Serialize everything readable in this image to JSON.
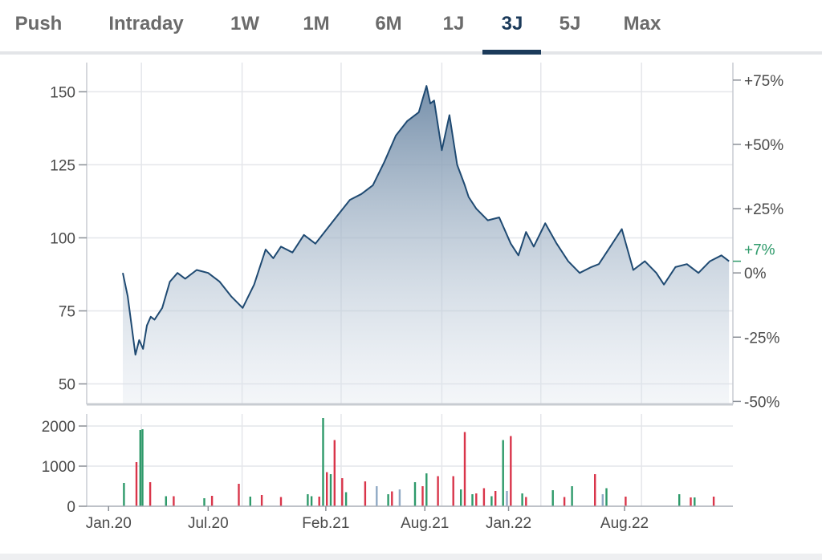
{
  "tabs": [
    {
      "label": "Push",
      "active": false
    },
    {
      "label": "Intraday",
      "active": false
    },
    {
      "label": "1W",
      "active": false
    },
    {
      "label": "1M",
      "active": false
    },
    {
      "label": "6M",
      "active": false
    },
    {
      "label": "1J",
      "active": false
    },
    {
      "label": "3J",
      "active": true
    },
    {
      "label": "5J",
      "active": false
    },
    {
      "label": "Max",
      "active": false
    }
  ],
  "colors": {
    "accent": "#1b3a5a",
    "line": "#1f4a72",
    "positive": "#2e9a6a",
    "negative": "#d9354a",
    "neutral_bar": "#8fa9c4"
  },
  "chart_data": [
    {
      "type": "area",
      "x_tick_labels": [
        "Jan.20",
        "Jul.20",
        "Feb.21",
        "Aug.21",
        "Jan.22",
        "Aug.22"
      ],
      "y_left_ticks": [
        150,
        125,
        100,
        75,
        50
      ],
      "ylim": [
        43,
        160
      ],
      "y_right_ticks": [
        "+75%",
        "+50%",
        "+25%",
        "0%",
        "-25%",
        "-50%"
      ],
      "current_change_label": "+7%",
      "grid": true,
      "series": [
        {
          "x": [
            "2020-01-27",
            "2020-02-05",
            "2020-02-12",
            "2020-02-19",
            "2020-02-26",
            "2020-03-04",
            "2020-03-11",
            "2020-03-18",
            "2020-03-25",
            "2020-04-08",
            "2020-04-22",
            "2020-05-06",
            "2020-05-20",
            "2020-06-10",
            "2020-07-01",
            "2020-07-22",
            "2020-08-12",
            "2020-09-02",
            "2020-09-23",
            "2020-10-14",
            "2020-10-28",
            "2020-11-11",
            "2020-12-02",
            "2020-12-09",
            "2020-12-23",
            "2021-01-13",
            "2021-02-03",
            "2021-02-24",
            "2021-03-17",
            "2021-04-07",
            "2021-04-28",
            "2021-05-19",
            "2021-06-09",
            "2021-06-30",
            "2021-07-21",
            "2021-08-04",
            "2021-08-11",
            "2021-08-18",
            "2021-09-01",
            "2021-09-15",
            "2021-09-29",
            "2021-10-13",
            "2021-10-20",
            "2021-11-03",
            "2021-11-24",
            "2021-12-15",
            "2022-01-05",
            "2022-01-19",
            "2022-02-02",
            "2022-02-16",
            "2022-03-09",
            "2022-03-30",
            "2022-04-20",
            "2022-05-11",
            "2022-06-01",
            "2022-06-15",
            "2022-07-06",
            "2022-07-27",
            "2022-08-17",
            "2022-09-07",
            "2022-09-28",
            "2022-10-12",
            "2022-11-02",
            "2022-11-23",
            "2022-12-14",
            "2023-01-04",
            "2023-01-25",
            "2023-02-08"
          ],
          "values": [
            88,
            80,
            70,
            60,
            65,
            62,
            70,
            73,
            72,
            76,
            85,
            88,
            86,
            89,
            88,
            85,
            80,
            76,
            84,
            96,
            93,
            97,
            95,
            97,
            101,
            98,
            103,
            108,
            113,
            115,
            118,
            126,
            135,
            140,
            143,
            152,
            146,
            147,
            130,
            142,
            125,
            118,
            114,
            110,
            106,
            107,
            98,
            94,
            102,
            97,
            105,
            98,
            92,
            88,
            90,
            91,
            97,
            103,
            89,
            92,
            88,
            84,
            90,
            91,
            88,
            92,
            94,
            92
          ]
        }
      ]
    },
    {
      "type": "bar",
      "y_ticks": [
        2000,
        1000,
        0
      ],
      "ylim": [
        0,
        2300
      ],
      "series": [
        {
          "name": "up",
          "x": [
            "2020-01-29",
            "2020-02-28",
            "2020-03-03",
            "2020-04-15",
            "2020-06-24",
            "2020-09-16",
            "2020-12-30",
            "2021-01-06",
            "2021-01-27",
            "2021-02-10",
            "2021-03-10",
            "2021-05-26",
            "2021-07-14",
            "2021-08-04",
            "2021-10-06",
            "2021-10-27",
            "2021-12-01",
            "2021-12-22",
            "2022-01-26",
            "2022-03-23",
            "2022-04-27",
            "2022-06-29",
            "2022-11-09",
            "2022-12-07"
          ],
          "values": [
            580,
            1900,
            1920,
            250,
            200,
            240,
            300,
            250,
            2200,
            800,
            350,
            300,
            600,
            820,
            420,
            300,
            250,
            1650,
            320,
            400,
            500,
            450,
            300,
            220
          ]
        },
        {
          "name": "down",
          "x": [
            "2020-02-21",
            "2020-03-17",
            "2020-04-29",
            "2020-07-08",
            "2020-08-26",
            "2020-10-07",
            "2020-11-11",
            "2021-01-20",
            "2021-02-03",
            "2021-02-17",
            "2021-03-03",
            "2021-04-14",
            "2021-06-02",
            "2021-07-28",
            "2021-08-25",
            "2021-09-22",
            "2021-10-13",
            "2021-11-03",
            "2021-11-17",
            "2021-12-08",
            "2022-01-05",
            "2022-02-02",
            "2022-04-13",
            "2022-06-08",
            "2022-08-03",
            "2022-11-30",
            "2023-01-11"
          ],
          "values": [
            1100,
            600,
            250,
            260,
            560,
            280,
            230,
            240,
            850,
            1650,
            700,
            620,
            370,
            500,
            750,
            750,
            1850,
            320,
            450,
            380,
            1750,
            230,
            230,
            800,
            240,
            220,
            240
          ]
        },
        {
          "name": "neutral",
          "x": [
            "2021-05-05",
            "2021-06-16",
            "2021-12-29",
            "2022-06-22"
          ],
          "values": [
            500,
            420,
            380,
            300
          ]
        }
      ]
    }
  ]
}
